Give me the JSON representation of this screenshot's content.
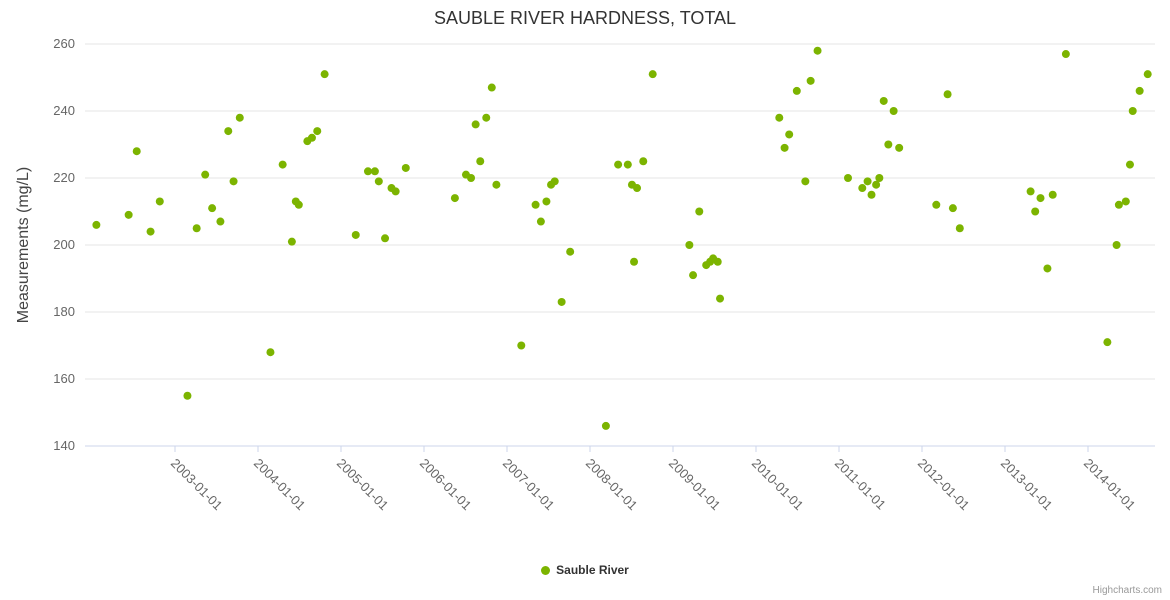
{
  "chart": {
    "title": "SAUBLE RIVER HARDNESS, TOTAL",
    "credits": "Highcharts.com"
  },
  "legend": {
    "label": "Sauble River"
  },
  "chart_data": {
    "type": "scatter",
    "title": "SAUBLE RIVER HARDNESS, TOTAL",
    "xlabel": "",
    "ylabel": "Measurements (mg/L)",
    "ylim": [
      140,
      260
    ],
    "yticks": [
      140,
      160,
      180,
      200,
      220,
      240,
      260
    ],
    "xticks": [
      "2003-01-01",
      "2004-01-01",
      "2005-01-01",
      "2006-01-01",
      "2007-01-01",
      "2008-01-01",
      "2009-01-01",
      "2010-01-01",
      "2011-01-01",
      "2012-01-01",
      "2013-01-01",
      "2014-01-01"
    ],
    "grid": "horizontal",
    "grid_color": "#e6e6e6",
    "axis_line_color": "#ccd6eb",
    "tick_label_color": "#666666",
    "legend_position": "bottom-center",
    "series": [
      {
        "name": "Sauble River",
        "color": "#7cb400",
        "points": [
          [
            "2002-01-20",
            206
          ],
          [
            "2002-06-10",
            209
          ],
          [
            "2002-07-15",
            228
          ],
          [
            "2002-09-15",
            204
          ],
          [
            "2002-10-25",
            213
          ],
          [
            "2003-02-25",
            155
          ],
          [
            "2003-04-05",
            205
          ],
          [
            "2003-05-12",
            221
          ],
          [
            "2003-06-12",
            211
          ],
          [
            "2003-07-18",
            207
          ],
          [
            "2003-08-22",
            234
          ],
          [
            "2003-09-15",
            219
          ],
          [
            "2003-10-12",
            238
          ],
          [
            "2004-02-25",
            168
          ],
          [
            "2004-04-18",
            224
          ],
          [
            "2004-05-28",
            201
          ],
          [
            "2004-06-15",
            213
          ],
          [
            "2004-06-28",
            212
          ],
          [
            "2004-08-05",
            231
          ],
          [
            "2004-08-25",
            232
          ],
          [
            "2004-09-18",
            234
          ],
          [
            "2004-10-20",
            251
          ],
          [
            "2005-03-05",
            203
          ],
          [
            "2005-04-28",
            222
          ],
          [
            "2005-05-28",
            222
          ],
          [
            "2005-06-15",
            219
          ],
          [
            "2005-07-12",
            202
          ],
          [
            "2005-08-10",
            217
          ],
          [
            "2005-08-28",
            216
          ],
          [
            "2005-10-12",
            223
          ],
          [
            "2006-05-15",
            214
          ],
          [
            "2006-07-03",
            221
          ],
          [
            "2006-07-25",
            220
          ],
          [
            "2006-08-15",
            236
          ],
          [
            "2006-09-05",
            225
          ],
          [
            "2006-10-01",
            238
          ],
          [
            "2006-10-25",
            247
          ],
          [
            "2006-11-15",
            218
          ],
          [
            "2007-03-03",
            170
          ],
          [
            "2007-05-05",
            212
          ],
          [
            "2007-05-28",
            207
          ],
          [
            "2007-06-22",
            213
          ],
          [
            "2007-07-12",
            218
          ],
          [
            "2007-07-28",
            219
          ],
          [
            "2007-08-28",
            183
          ],
          [
            "2007-10-05",
            198
          ],
          [
            "2008-03-10",
            146
          ],
          [
            "2008-05-03",
            224
          ],
          [
            "2008-06-15",
            224
          ],
          [
            "2008-07-03",
            218
          ],
          [
            "2008-07-12",
            195
          ],
          [
            "2008-07-25",
            217
          ],
          [
            "2008-08-22",
            225
          ],
          [
            "2008-10-03",
            251
          ],
          [
            "2009-03-12",
            200
          ],
          [
            "2009-03-28",
            191
          ],
          [
            "2009-04-25",
            210
          ],
          [
            "2009-05-25",
            194
          ],
          [
            "2009-06-12",
            195
          ],
          [
            "2009-06-25",
            196
          ],
          [
            "2009-07-15",
            195
          ],
          [
            "2009-07-25",
            184
          ],
          [
            "2010-04-12",
            238
          ],
          [
            "2010-05-05",
            229
          ],
          [
            "2010-05-25",
            233
          ],
          [
            "2010-06-28",
            246
          ],
          [
            "2010-08-05",
            219
          ],
          [
            "2010-08-28",
            249
          ],
          [
            "2010-09-28",
            258
          ],
          [
            "2011-02-10",
            220
          ],
          [
            "2011-04-12",
            217
          ],
          [
            "2011-05-05",
            219
          ],
          [
            "2011-05-22",
            215
          ],
          [
            "2011-06-12",
            218
          ],
          [
            "2011-06-26",
            220
          ],
          [
            "2011-07-15",
            243
          ],
          [
            "2011-08-05",
            230
          ],
          [
            "2011-08-28",
            240
          ],
          [
            "2011-09-22",
            229
          ],
          [
            "2012-03-03",
            212
          ],
          [
            "2012-04-22",
            245
          ],
          [
            "2012-05-15",
            211
          ],
          [
            "2012-06-15",
            205
          ],
          [
            "2013-04-22",
            216
          ],
          [
            "2013-05-12",
            210
          ],
          [
            "2013-06-05",
            214
          ],
          [
            "2013-07-05",
            193
          ],
          [
            "2013-07-28",
            215
          ],
          [
            "2013-09-25",
            257
          ],
          [
            "2014-03-25",
            171
          ],
          [
            "2014-05-05",
            200
          ],
          [
            "2014-05-15",
            212
          ],
          [
            "2014-06-15",
            213
          ],
          [
            "2014-07-03",
            224
          ],
          [
            "2014-07-15",
            240
          ],
          [
            "2014-08-15",
            246
          ],
          [
            "2014-09-20",
            251
          ]
        ]
      }
    ]
  }
}
